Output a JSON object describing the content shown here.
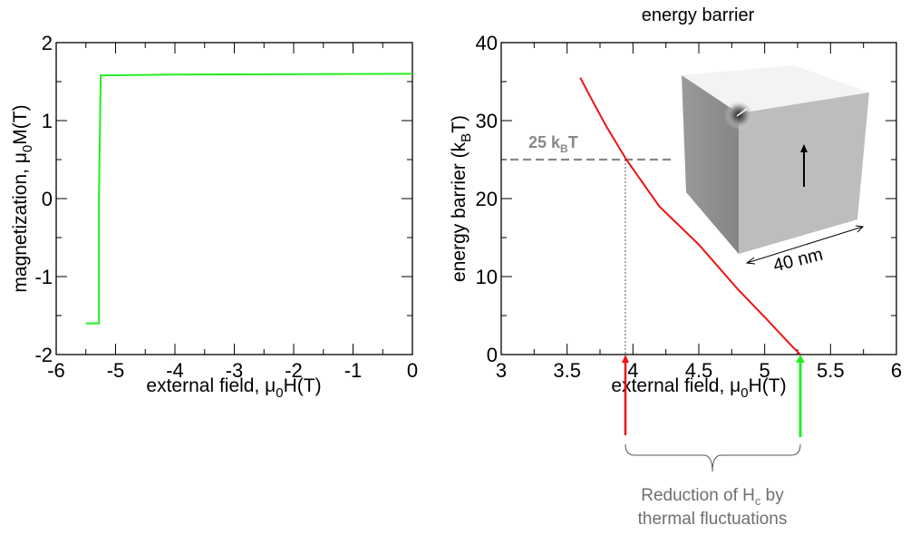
{
  "chart_data": [
    {
      "type": "line",
      "title": "",
      "xlabel": {
        "text": "external field, μ",
        "sub": "0",
        "end": "H(T)"
      },
      "ylabel": {
        "text": "magnetization, μ",
        "sub": "0",
        "end": "M(T)"
      },
      "xlim": [
        -6,
        0
      ],
      "ylim": [
        -2,
        2
      ],
      "xticks": [
        "-6",
        "-5",
        "-4",
        "-3",
        "-2",
        "-1",
        "0"
      ],
      "yticks": [
        "-2",
        "-1",
        "0",
        "1",
        "2"
      ],
      "series": [
        {
          "name": "magnetization",
          "color": "#22ee22",
          "x": [
            -5.5,
            -5.28,
            -5.28,
            -5.25,
            -4.0,
            0
          ],
          "y": [
            -1.6,
            -1.6,
            0,
            1.58,
            1.59,
            1.6
          ]
        }
      ]
    },
    {
      "type": "line",
      "title": "energy barrier",
      "xlabel": {
        "text": "external field, μ",
        "sub": "0",
        "end": "H(T)"
      },
      "ylabel": {
        "text": "energy barrier (k",
        "sub": "B",
        "end": "T)"
      },
      "xlim": [
        3,
        6
      ],
      "ylim": [
        0,
        40
      ],
      "xticks": [
        "3",
        "3.5",
        "4",
        "4.5",
        "5",
        "5.5",
        "6"
      ],
      "yticks": [
        "0",
        "10",
        "20",
        "30",
        "40"
      ],
      "series": [
        {
          "name": "energy barrier",
          "color": "#ee1111",
          "x": [
            3.6,
            3.7,
            3.8,
            3.95,
            4.2,
            4.5,
            4.8,
            5.0,
            5.2,
            5.27
          ],
          "y": [
            35.5,
            32.3,
            29.2,
            25,
            19,
            14.1,
            8.3,
            4.8,
            1.2,
            0
          ]
        }
      ],
      "annotations": {
        "threshold": {
          "value": 25,
          "text": "25 k",
          "sub": "B",
          "end": "T",
          "color": "#888888"
        },
        "threshold_field": 3.95,
        "zero_barrier_field": 5.27,
        "inset_scale": "40 nm",
        "red_arrow_color": "#ee1111",
        "green_arrow_color": "#22ee22",
        "brace_caption_line1": "Reduction of H",
        "brace_caption_sub": "c",
        "brace_caption_end": " by",
        "brace_caption_line2": "thermal fluctuations"
      }
    }
  ]
}
